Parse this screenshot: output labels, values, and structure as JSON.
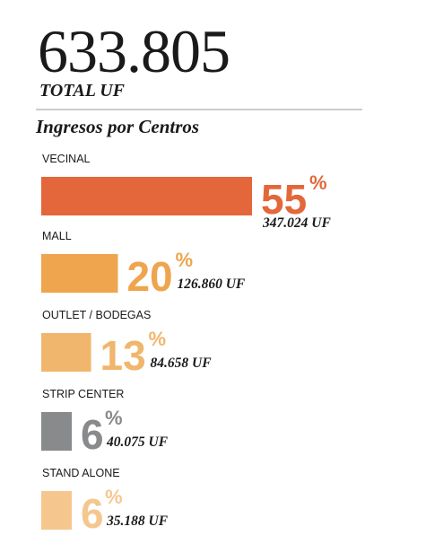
{
  "header": {
    "total_value": "633.805",
    "total_label": "TOTAL UF",
    "subtitle": "Ingresos por Centros"
  },
  "chart_data": {
    "type": "bar",
    "title": "Ingresos por Centros",
    "categories": [
      "VECINAL",
      "MALL",
      "OUTLET / BODEGAS",
      "STRIP CENTER",
      "STAND ALONE"
    ],
    "values": [
      55,
      20,
      13,
      6,
      6
    ],
    "value_unit": "%",
    "amounts": [
      "347.024 UF",
      "126.860 UF",
      "84.658 UF",
      "40.075 UF",
      "35.188 UF"
    ],
    "colors": [
      "#e3673a",
      "#eea54e",
      "#f1b66d",
      "#898a8c",
      "#f5c78f"
    ],
    "orientation": "horizontal",
    "grid": false,
    "legend": "none"
  }
}
